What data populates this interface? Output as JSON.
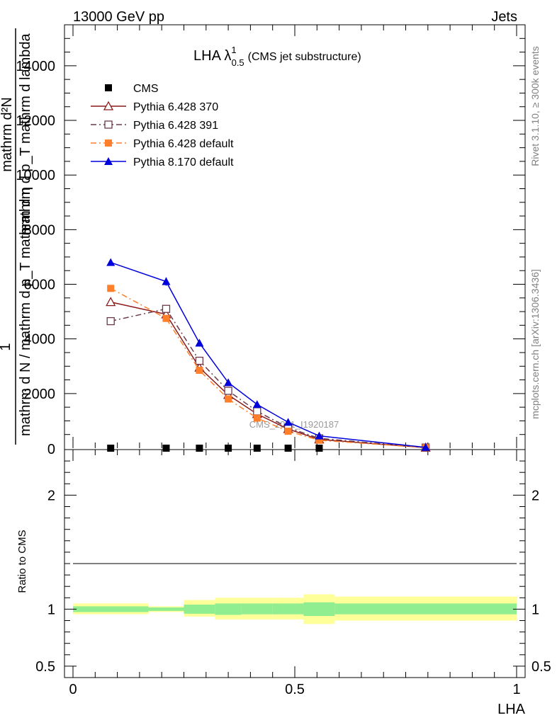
{
  "header": {
    "left": "13000 GeV pp",
    "right": "Jets"
  },
  "side_labels": {
    "rivet": "Rivet 3.1.10, ≥ 300k events",
    "mcplots": "mcplots.cern.ch [arXiv:1306.3436]"
  },
  "watermark": "CMS_2021_I1920187",
  "colors": {
    "cms": "#000000",
    "py6_370": "#8b1a1a",
    "py6_391": "#6b3a4a",
    "py6_default": "#ff7f2a",
    "py8_default": "#0000dd",
    "band_inner": "#90ee90",
    "band_outer": "#ffff99"
  },
  "chart_data": [
    {
      "type": "line",
      "title": "LHA λ",
      "title_sup": "1",
      "title_sub": "0.5",
      "title_suffix": "(CMS jet substructure)",
      "ylabel_top": "1",
      "ylabel_bottom": "mathrm d N / mathrm d p_T mathrm d η",
      "ylabel_fraction_num": "mathrm d²N",
      "ylabel_fraction_den": "mathrm d p_T mathrm d lambda",
      "ylim": [
        0,
        15500
      ],
      "yticks": [
        2000,
        4000,
        6000,
        8000,
        10000,
        12000,
        14000
      ],
      "ytick_labels": [
        "2000",
        "4000",
        "6000",
        "8000",
        "10000",
        "12000",
        "14000"
      ],
      "y_zero_label": "0",
      "xlim": [
        0,
        1
      ],
      "x": [
        0.085,
        0.21,
        0.285,
        0.35,
        0.415,
        0.485,
        0.555,
        0.795
      ],
      "legend_placement": "top-left",
      "series": [
        {
          "name": "CMS",
          "color_key": "cms",
          "marker": "square-filled",
          "values": [
            0,
            0,
            0,
            0,
            0,
            0,
            0,
            0
          ]
        },
        {
          "name": "Pythia 6.428 370",
          "color_key": "py6_370",
          "marker": "triangle-open",
          "dash": "",
          "values": [
            5350,
            4900,
            2950,
            1950,
            1250,
            700,
            320,
            20
          ]
        },
        {
          "name": "Pythia 6.428 391",
          "color_key": "py6_391",
          "marker": "square-open",
          "dash": "8,4,2,4",
          "values": [
            4650,
            5100,
            3200,
            2100,
            1350,
            750,
            360,
            22
          ]
        },
        {
          "name": "Pythia 6.428 default",
          "color_key": "py6_default",
          "marker": "square-filled",
          "dash": "8,4,2,4",
          "values": [
            5850,
            4750,
            2850,
            1800,
            1100,
            620,
            290,
            18
          ]
        },
        {
          "name": "Pythia 8.170 default",
          "color_key": "py8_default",
          "marker": "triangle-filled",
          "dash": "",
          "values": [
            6800,
            6100,
            3850,
            2400,
            1600,
            950,
            450,
            30
          ]
        }
      ],
      "error_bars": {
        "Pythia 8.170 default": [
          100,
          150,
          100,
          80,
          60,
          40,
          30,
          10
        ]
      }
    },
    {
      "type": "area",
      "ylabel": "Ratio to CMS",
      "ylim": [
        0.4,
        2.4
      ],
      "yticks": [
        0.5,
        1,
        2
      ],
      "ytick_labels": [
        "0.5",
        "1",
        "2"
      ],
      "xlim": [
        0,
        1
      ],
      "xticks": [
        0,
        0.5,
        1
      ],
      "xtick_labels": [
        "0",
        "0.5",
        "1"
      ],
      "xlabel": "LHA",
      "bins": [
        {
          "lo": 0.0,
          "hi": 0.17,
          "inner": [
            0.975,
            1.025
          ],
          "outer": [
            0.955,
            1.05
          ]
        },
        {
          "lo": 0.17,
          "hi": 0.25,
          "inner": [
            0.985,
            1.015
          ],
          "outer": [
            0.975,
            1.025
          ]
        },
        {
          "lo": 0.25,
          "hi": 0.32,
          "inner": [
            0.96,
            1.04
          ],
          "outer": [
            0.935,
            1.08
          ]
        },
        {
          "lo": 0.32,
          "hi": 0.38,
          "inner": [
            0.95,
            1.05
          ],
          "outer": [
            0.91,
            1.1
          ]
        },
        {
          "lo": 0.38,
          "hi": 0.45,
          "inner": [
            0.955,
            1.05
          ],
          "outer": [
            0.91,
            1.1
          ]
        },
        {
          "lo": 0.45,
          "hi": 0.52,
          "inner": [
            0.955,
            1.05
          ],
          "outer": [
            0.91,
            1.1
          ]
        },
        {
          "lo": 0.52,
          "hi": 0.59,
          "inner": [
            0.94,
            1.06
          ],
          "outer": [
            0.87,
            1.13
          ]
        },
        {
          "lo": 0.59,
          "hi": 1.0,
          "inner": [
            0.955,
            1.05
          ],
          "outer": [
            0.9,
            1.11
          ]
        }
      ]
    }
  ]
}
